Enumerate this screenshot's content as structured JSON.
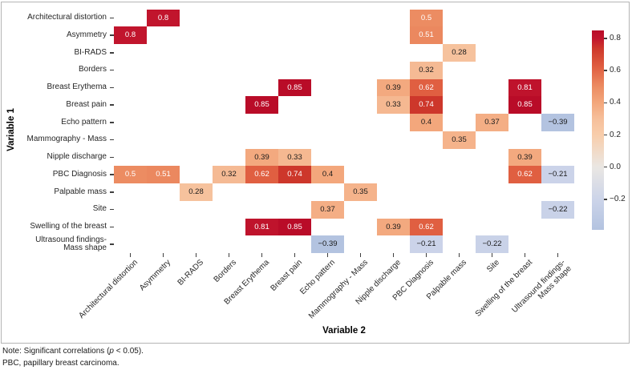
{
  "notes": {
    "line1_prefix": "Note: Significant correlations (",
    "line1_italic": "p",
    "line1_suffix": " < 0.05).",
    "line2": "PBC, papillary breast carcinoma."
  },
  "chart_data": {
    "type": "heatmap",
    "xlabel": "Variable 2",
    "ylabel": "Variable 1",
    "categories": [
      "Architectural distortion",
      "Asymmetry",
      "BI-RADS",
      "Borders",
      "Breast Erythema",
      "Breast pain",
      "Echo pattern",
      "Mammography - Mass",
      "Nipple discharge",
      "PBC Diagnosis",
      "Palpable mass",
      "Site",
      "Swelling of the breast",
      "Ultrasound findings-\nMass shape"
    ],
    "cells_note": "each cell is [rowIndex, colIndex, correlationValue]; only significant correlations are drawn",
    "cells": [
      [
        0,
        1,
        0.8
      ],
      [
        0,
        9,
        0.5
      ],
      [
        1,
        0,
        0.8
      ],
      [
        1,
        9,
        0.51
      ],
      [
        2,
        10,
        0.28
      ],
      [
        3,
        9,
        0.32
      ],
      [
        4,
        5,
        0.85
      ],
      [
        4,
        8,
        0.39
      ],
      [
        4,
        9,
        0.62
      ],
      [
        4,
        12,
        0.81
      ],
      [
        5,
        4,
        0.85
      ],
      [
        5,
        8,
        0.33
      ],
      [
        5,
        9,
        0.74
      ],
      [
        5,
        12,
        0.85
      ],
      [
        6,
        9,
        0.4
      ],
      [
        6,
        11,
        0.37
      ],
      [
        6,
        13,
        -0.39
      ],
      [
        7,
        10,
        0.35
      ],
      [
        8,
        4,
        0.39
      ],
      [
        8,
        5,
        0.33
      ],
      [
        8,
        12,
        0.39
      ],
      [
        9,
        0,
        0.5
      ],
      [
        9,
        1,
        0.51
      ],
      [
        9,
        3,
        0.32
      ],
      [
        9,
        4,
        0.62
      ],
      [
        9,
        5,
        0.74
      ],
      [
        9,
        6,
        0.4
      ],
      [
        9,
        12,
        0.62
      ],
      [
        9,
        13,
        -0.21
      ],
      [
        10,
        2,
        0.28
      ],
      [
        10,
        7,
        0.35
      ],
      [
        11,
        6,
        0.37
      ],
      [
        11,
        13,
        -0.22
      ],
      [
        12,
        4,
        0.81
      ],
      [
        12,
        5,
        0.85
      ],
      [
        12,
        8,
        0.39
      ],
      [
        12,
        9,
        0.62
      ],
      [
        13,
        6,
        -0.39
      ],
      [
        13,
        9,
        -0.21
      ],
      [
        13,
        11,
        -0.22
      ]
    ],
    "colorbar": {
      "position": "right",
      "vmin": -0.39,
      "vmax": 0.85,
      "ticks": [
        0.8,
        0.6,
        0.4,
        0.2,
        0.0,
        -0.2
      ]
    },
    "colormap_anchors": [
      {
        "v": -0.39,
        "c": "#b3c3e0"
      },
      {
        "v": -0.2,
        "c": "#ccd4e9"
      },
      {
        "v": 0.0,
        "c": "#eae7e3"
      },
      {
        "v": 0.2,
        "c": "#f8cdab"
      },
      {
        "v": 0.3,
        "c": "#f6bf9a"
      },
      {
        "v": 0.4,
        "c": "#f3a77c"
      },
      {
        "v": 0.5,
        "c": "#ec8c62"
      },
      {
        "v": 0.62,
        "c": "#e05f41"
      },
      {
        "v": 0.74,
        "c": "#cd372b"
      },
      {
        "v": 0.8,
        "c": "#c1152d"
      },
      {
        "v": 0.85,
        "c": "#b90c28"
      }
    ],
    "cell_text": {
      "light": "#ffffff",
      "dark": "#1a1a1a",
      "light_threshold": 0.45
    },
    "grid": false
  }
}
